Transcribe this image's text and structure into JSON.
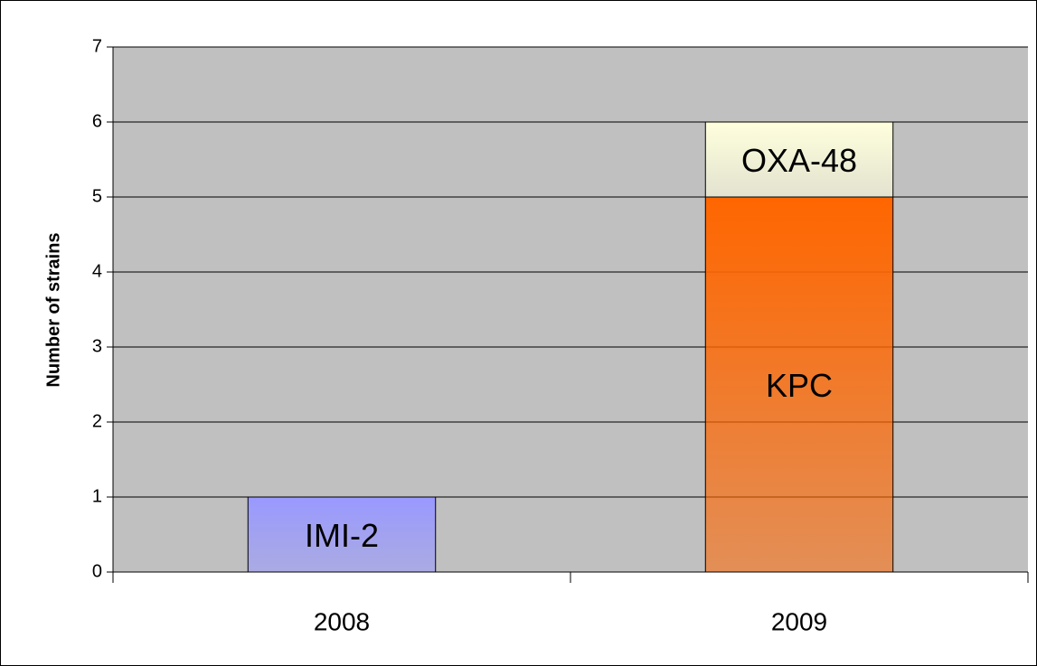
{
  "chart_data": {
    "type": "stacked_bar",
    "y_axis_label": "Number of strains",
    "categories": [
      "2008",
      "2009"
    ],
    "series": [
      {
        "name": "IMI-2",
        "color": "#9999ff",
        "values": [
          1,
          null
        ]
      },
      {
        "name": "KPC",
        "color": "#ff6600",
        "values": [
          null,
          5
        ]
      },
      {
        "name": "OXA-48",
        "color": "#ffffdd",
        "values": [
          null,
          1
        ]
      }
    ],
    "ylim": [
      0,
      7
    ],
    "yticks": [
      0,
      1,
      2,
      3,
      4,
      5,
      6,
      7
    ],
    "grid": true
  }
}
